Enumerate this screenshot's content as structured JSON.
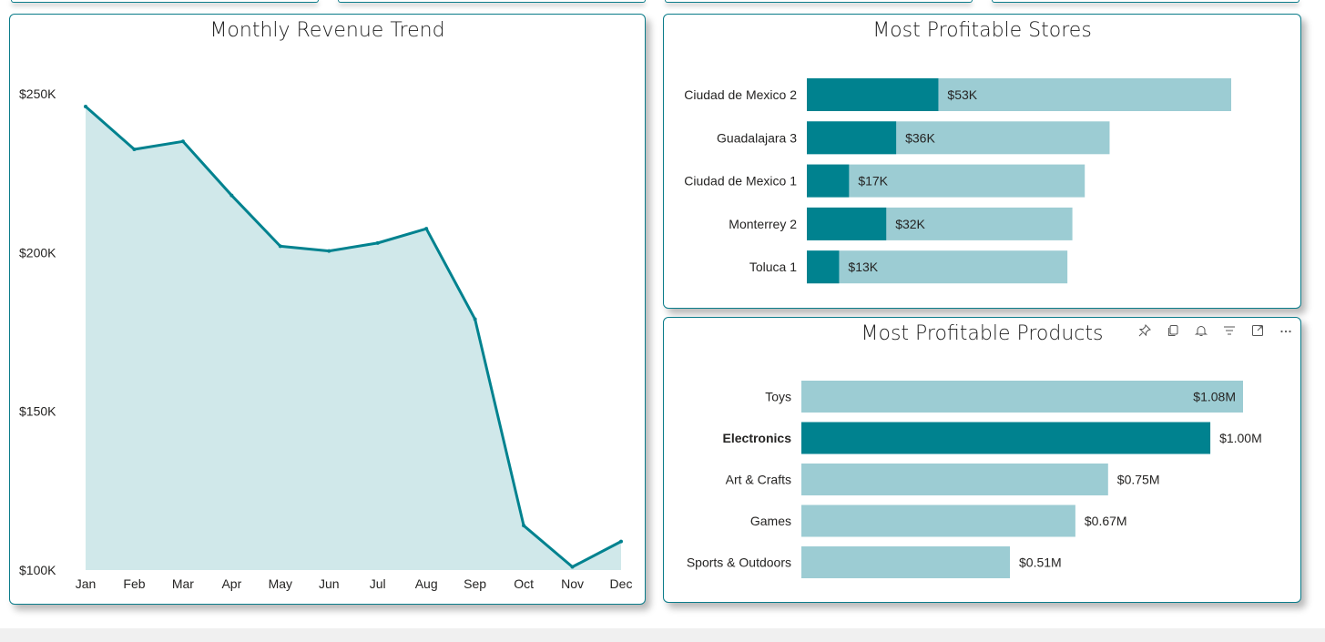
{
  "colors": {
    "accent": "#00828F",
    "bar_light": "#9CCCD3",
    "area_fill": "#D0E8EA",
    "card_border": "#0b7c8a"
  },
  "revenue_chart": {
    "title": "Monthly Revenue Trend"
  },
  "stores_chart": {
    "title": "Most Profitable Stores"
  },
  "products_chart": {
    "title": "Most Profitable Products",
    "header_icons": [
      "pin-icon",
      "copy-icon",
      "bell-icon",
      "filter-icon",
      "focus-mode-icon",
      "more-options-icon"
    ]
  },
  "chart_data": [
    {
      "type": "area",
      "title": "Monthly Revenue Trend",
      "x": [
        "Jan",
        "Feb",
        "Mar",
        "Apr",
        "May",
        "Jun",
        "Jul",
        "Aug",
        "Sep",
        "Oct",
        "Nov",
        "Dec"
      ],
      "series": [
        {
          "values": [
            246000,
            232500,
            235000,
            218000,
            202000,
            200500,
            203000,
            207500,
            179000,
            114000,
            101000,
            109000
          ]
        }
      ],
      "ylim": [
        100000,
        250000
      ],
      "yticks": [
        {
          "value": 250000,
          "label": "$250K"
        },
        {
          "value": 200000,
          "label": "$200K"
        },
        {
          "value": 150000,
          "label": "$150K"
        },
        {
          "value": 100000,
          "label": "$100K"
        }
      ],
      "grid": false
    },
    {
      "type": "bar",
      "orientation": "horizontal",
      "title": "Most Profitable Stores",
      "categories": [
        "Ciudad de Mexico 2",
        "Guadalajara 3",
        "Ciudad de Mexico 1",
        "Monterrey 2",
        "Toluca 1"
      ],
      "series": [
        {
          "values": [
            53000,
            36000,
            17000,
            32000,
            13000
          ],
          "labels": [
            "$53K",
            "$36K",
            "$17K",
            "$32K",
            "$13K"
          ]
        },
        {
          "values": [
            171000,
            122000,
            112000,
            107000,
            105000
          ]
        }
      ]
    },
    {
      "type": "bar",
      "orientation": "horizontal",
      "title": "Most Profitable Products",
      "categories": [
        "Toys",
        "Electronics",
        "Art & Crafts",
        "Games",
        "Sports & Outdoors"
      ],
      "values": [
        1.08,
        1.0,
        0.75,
        0.67,
        0.51
      ],
      "labels": [
        "$1.08M",
        "$1.00M",
        "$0.75M",
        "$0.67M",
        "$0.51M"
      ],
      "highlighted": "Electronics"
    }
  ]
}
